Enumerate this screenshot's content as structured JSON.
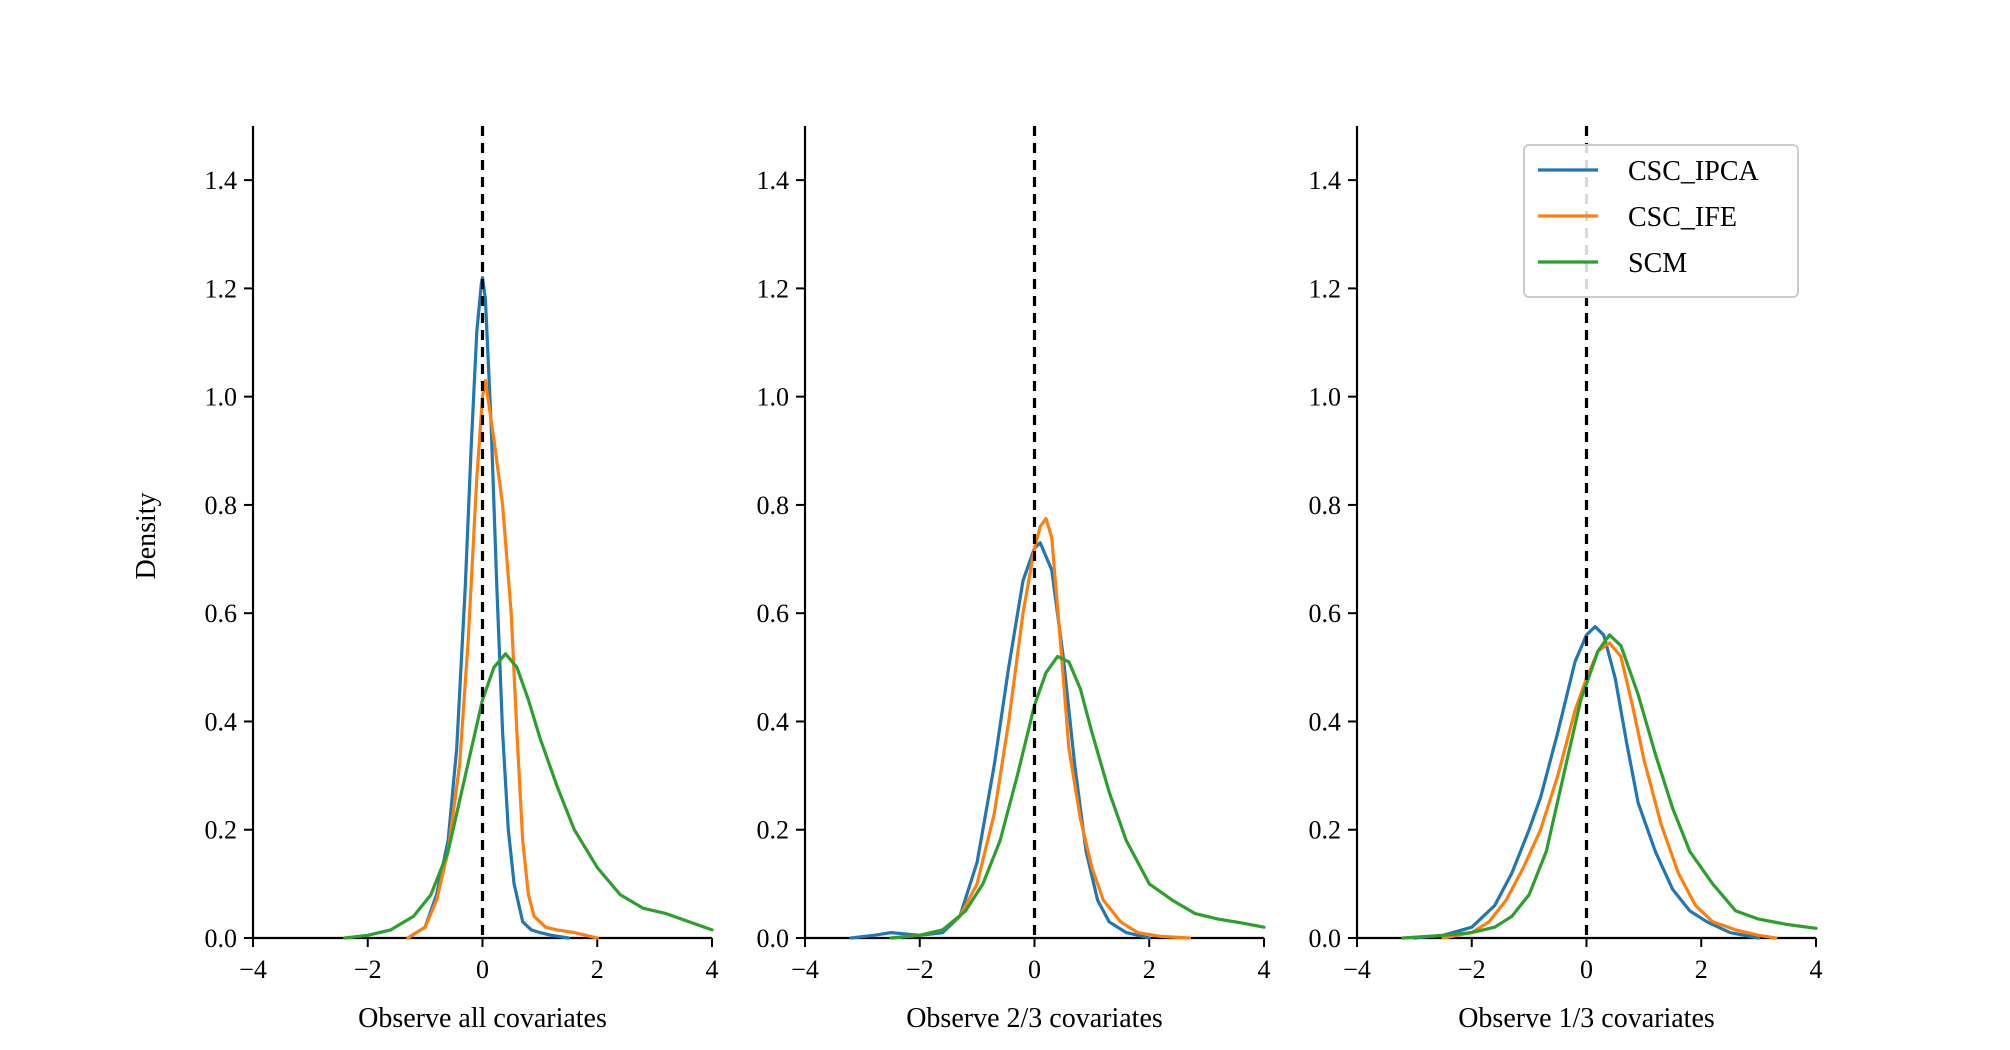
{
  "colors": {
    "CSC_IPCA": "#1f77b4",
    "CSC_IFE": "#ff7f0e",
    "SCM": "#2ca02c",
    "reference_line": "#000000"
  },
  "y_axis_title": "Density",
  "legend": {
    "placement": "upper-right of third panel",
    "entries": [
      "CSC_IPCA",
      "CSC_IFE",
      "SCM"
    ]
  },
  "chart_data": [
    {
      "type": "line",
      "xlabel": "Observe all covariates",
      "ylabel": "Density",
      "xlim": [
        -4,
        4
      ],
      "ylim": [
        0,
        1.5
      ],
      "xticks": [
        -4,
        -2,
        0,
        2,
        4
      ],
      "xtick_labels": [
        "−4",
        "−2",
        "0",
        "2",
        "4"
      ],
      "yticks": [
        0,
        0.2,
        0.4,
        0.6,
        0.8,
        1.0,
        1.2,
        1.4
      ],
      "ytick_labels": [
        "0.0",
        "0.2",
        "0.4",
        "0.6",
        "0.8",
        "1.0",
        "1.2",
        "1.4"
      ],
      "vline_x": 0,
      "series": [
        {
          "name": "CSC_IPCA",
          "x": [
            -1.3,
            -1.0,
            -0.8,
            -0.6,
            -0.45,
            -0.3,
            -0.2,
            -0.1,
            -0.02,
            0.0,
            0.05,
            0.15,
            0.25,
            0.35,
            0.45,
            0.55,
            0.7,
            0.85,
            1.0,
            1.2,
            1.5
          ],
          "y": [
            0.0,
            0.02,
            0.08,
            0.18,
            0.35,
            0.65,
            0.9,
            1.12,
            1.21,
            1.22,
            1.18,
            0.95,
            0.65,
            0.38,
            0.2,
            0.1,
            0.03,
            0.015,
            0.01,
            0.005,
            0.0
          ]
        },
        {
          "name": "CSC_IFE",
          "x": [
            -1.3,
            -1.0,
            -0.8,
            -0.6,
            -0.4,
            -0.25,
            -0.1,
            0.0,
            0.05,
            0.2,
            0.35,
            0.5,
            0.6,
            0.7,
            0.8,
            0.9,
            1.1,
            1.3,
            1.6,
            1.8,
            2.0
          ],
          "y": [
            0.0,
            0.02,
            0.07,
            0.16,
            0.32,
            0.55,
            0.85,
            1.0,
            1.03,
            0.92,
            0.8,
            0.6,
            0.38,
            0.18,
            0.08,
            0.04,
            0.02,
            0.015,
            0.01,
            0.005,
            0.0
          ]
        },
        {
          "name": "SCM",
          "x": [
            -2.4,
            -2.0,
            -1.6,
            -1.2,
            -0.9,
            -0.6,
            -0.3,
            0.0,
            0.2,
            0.4,
            0.6,
            0.8,
            1.0,
            1.3,
            1.6,
            2.0,
            2.4,
            2.8,
            3.2,
            3.6,
            4.0
          ],
          "y": [
            0.0,
            0.005,
            0.015,
            0.04,
            0.08,
            0.16,
            0.3,
            0.44,
            0.5,
            0.525,
            0.5,
            0.44,
            0.37,
            0.28,
            0.2,
            0.13,
            0.08,
            0.055,
            0.045,
            0.03,
            0.015
          ]
        }
      ]
    },
    {
      "type": "line",
      "xlabel": "Observe 2/3 covariates",
      "ylabel": "",
      "xlim": [
        -4,
        4
      ],
      "ylim": [
        0,
        1.5
      ],
      "xticks": [
        -4,
        -2,
        0,
        2,
        4
      ],
      "xtick_labels": [
        "−4",
        "−2",
        "0",
        "2",
        "4"
      ],
      "yticks": [
        0,
        0.2,
        0.4,
        0.6,
        0.8,
        1.0,
        1.2,
        1.4
      ],
      "ytick_labels": [
        "0.0",
        "0.2",
        "0.4",
        "0.6",
        "0.8",
        "1.0",
        "1.2",
        "1.4"
      ],
      "vline_x": 0,
      "series": [
        {
          "name": "CSC_IPCA",
          "x": [
            -3.2,
            -2.8,
            -2.5,
            -2.3,
            -2.0,
            -1.6,
            -1.3,
            -1.0,
            -0.7,
            -0.45,
            -0.2,
            0.0,
            0.1,
            0.3,
            0.5,
            0.7,
            0.9,
            1.1,
            1.3,
            1.6,
            2.0
          ],
          "y": [
            0.0,
            0.005,
            0.01,
            0.008,
            0.005,
            0.01,
            0.04,
            0.14,
            0.32,
            0.5,
            0.66,
            0.72,
            0.73,
            0.68,
            0.52,
            0.32,
            0.16,
            0.07,
            0.03,
            0.01,
            0.0
          ]
        },
        {
          "name": "CSC_IFE",
          "x": [
            -2.5,
            -2.0,
            -1.6,
            -1.3,
            -1.0,
            -0.7,
            -0.45,
            -0.2,
            0.0,
            0.1,
            0.2,
            0.3,
            0.45,
            0.6,
            0.8,
            1.0,
            1.2,
            1.5,
            1.8,
            2.2,
            2.7
          ],
          "y": [
            0.0,
            0.005,
            0.015,
            0.04,
            0.1,
            0.23,
            0.4,
            0.6,
            0.72,
            0.76,
            0.775,
            0.74,
            0.55,
            0.35,
            0.22,
            0.13,
            0.07,
            0.03,
            0.01,
            0.003,
            0.0
          ]
        },
        {
          "name": "SCM",
          "x": [
            -2.5,
            -2.0,
            -1.6,
            -1.2,
            -0.9,
            -0.6,
            -0.3,
            0.0,
            0.2,
            0.4,
            0.6,
            0.8,
            1.0,
            1.3,
            1.6,
            2.0,
            2.4,
            2.8,
            3.2,
            3.6,
            4.0
          ],
          "y": [
            0.0,
            0.005,
            0.015,
            0.05,
            0.1,
            0.18,
            0.3,
            0.43,
            0.49,
            0.52,
            0.51,
            0.46,
            0.38,
            0.27,
            0.18,
            0.1,
            0.07,
            0.045,
            0.035,
            0.028,
            0.02
          ]
        }
      ]
    },
    {
      "type": "line",
      "xlabel": "Observe 1/3 covariates",
      "ylabel": "",
      "xlim": [
        -4,
        4
      ],
      "ylim": [
        0,
        1.5
      ],
      "xticks": [
        -4,
        -2,
        0,
        2,
        4
      ],
      "xtick_labels": [
        "−4",
        "−2",
        "0",
        "2",
        "4"
      ],
      "yticks": [
        0,
        0.2,
        0.4,
        0.6,
        0.8,
        1.0,
        1.2,
        1.4
      ],
      "ytick_labels": [
        "0.0",
        "0.2",
        "0.4",
        "0.6",
        "0.8",
        "1.0",
        "1.2",
        "1.4"
      ],
      "vline_x": 0,
      "series": [
        {
          "name": "CSC_IPCA",
          "x": [
            -3.0,
            -2.5,
            -2.0,
            -1.6,
            -1.3,
            -1.0,
            -0.8,
            -0.5,
            -0.2,
            0.0,
            0.15,
            0.3,
            0.5,
            0.7,
            0.9,
            1.2,
            1.5,
            1.8,
            2.1,
            2.5,
            3.0
          ],
          "y": [
            0.0,
            0.005,
            0.02,
            0.06,
            0.12,
            0.2,
            0.26,
            0.38,
            0.51,
            0.56,
            0.575,
            0.56,
            0.48,
            0.36,
            0.25,
            0.16,
            0.09,
            0.05,
            0.03,
            0.01,
            0.0
          ]
        },
        {
          "name": "CSC_IFE",
          "x": [
            -2.5,
            -2.0,
            -1.7,
            -1.4,
            -1.1,
            -0.8,
            -0.5,
            -0.2,
            0.0,
            0.2,
            0.4,
            0.6,
            0.8,
            1.0,
            1.3,
            1.6,
            1.9,
            2.2,
            2.6,
            3.0,
            3.3
          ],
          "y": [
            0.0,
            0.01,
            0.03,
            0.07,
            0.13,
            0.2,
            0.3,
            0.42,
            0.48,
            0.53,
            0.545,
            0.52,
            0.43,
            0.33,
            0.21,
            0.12,
            0.06,
            0.03,
            0.015,
            0.005,
            0.0
          ]
        },
        {
          "name": "SCM",
          "x": [
            -3.2,
            -2.5,
            -2.0,
            -1.6,
            -1.3,
            -1.0,
            -0.7,
            -0.4,
            -0.1,
            0.2,
            0.4,
            0.6,
            0.9,
            1.2,
            1.5,
            1.8,
            2.2,
            2.6,
            3.0,
            3.5,
            4.0
          ],
          "y": [
            0.0,
            0.005,
            0.01,
            0.02,
            0.04,
            0.08,
            0.16,
            0.3,
            0.44,
            0.53,
            0.56,
            0.54,
            0.45,
            0.34,
            0.24,
            0.16,
            0.1,
            0.05,
            0.035,
            0.025,
            0.018
          ]
        }
      ]
    }
  ]
}
